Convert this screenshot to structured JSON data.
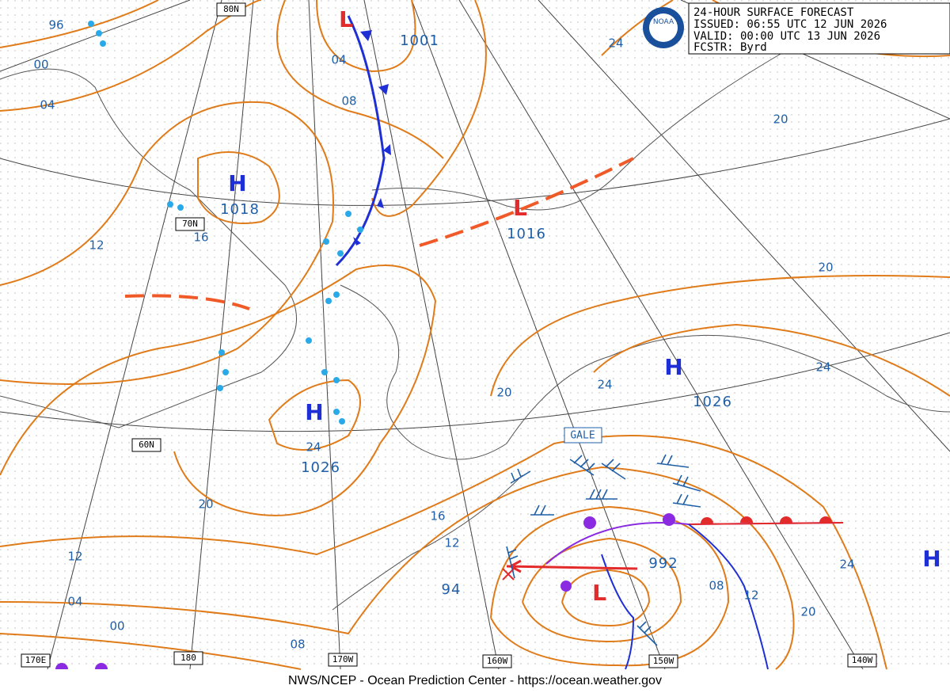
{
  "header": {
    "logo": "NOAA",
    "title": "24-HOUR SURFACE FORECAST",
    "issued": "ISSUED: 06:55 UTC 12 JUN 2026",
    "valid": "VALID:  00:00 UTC 13 JUN 2026",
    "forecaster": "FCSTR:  Byrd"
  },
  "systems": [
    {
      "letter": "L",
      "value": "1001"
    },
    {
      "letter": "H",
      "value": "1018"
    },
    {
      "letter": "L",
      "value": "1016"
    },
    {
      "letter": "H",
      "value": "1026"
    },
    {
      "letter": "H",
      "value": "1026"
    },
    {
      "letter": "L",
      "value": "992"
    },
    {
      "letter": "H"
    }
  ],
  "extra_pressure": "94",
  "warning": "GALE",
  "isobar_labels": [
    "96",
    "00",
    "04",
    "04",
    "08",
    "12",
    "16",
    "24",
    "20",
    "20",
    "24",
    "24",
    "20",
    "24",
    "20",
    "16",
    "12",
    "12",
    "04",
    "00",
    "08",
    "08",
    "12",
    "24",
    "20"
  ],
  "grid_labels": [
    "80N",
    "70N",
    "60N",
    "170E",
    "180",
    "170W",
    "160W",
    "150W",
    "140W"
  ],
  "footer": "NWS/NCEP - Ocean Prediction Center - https://ocean.weather.gov"
}
